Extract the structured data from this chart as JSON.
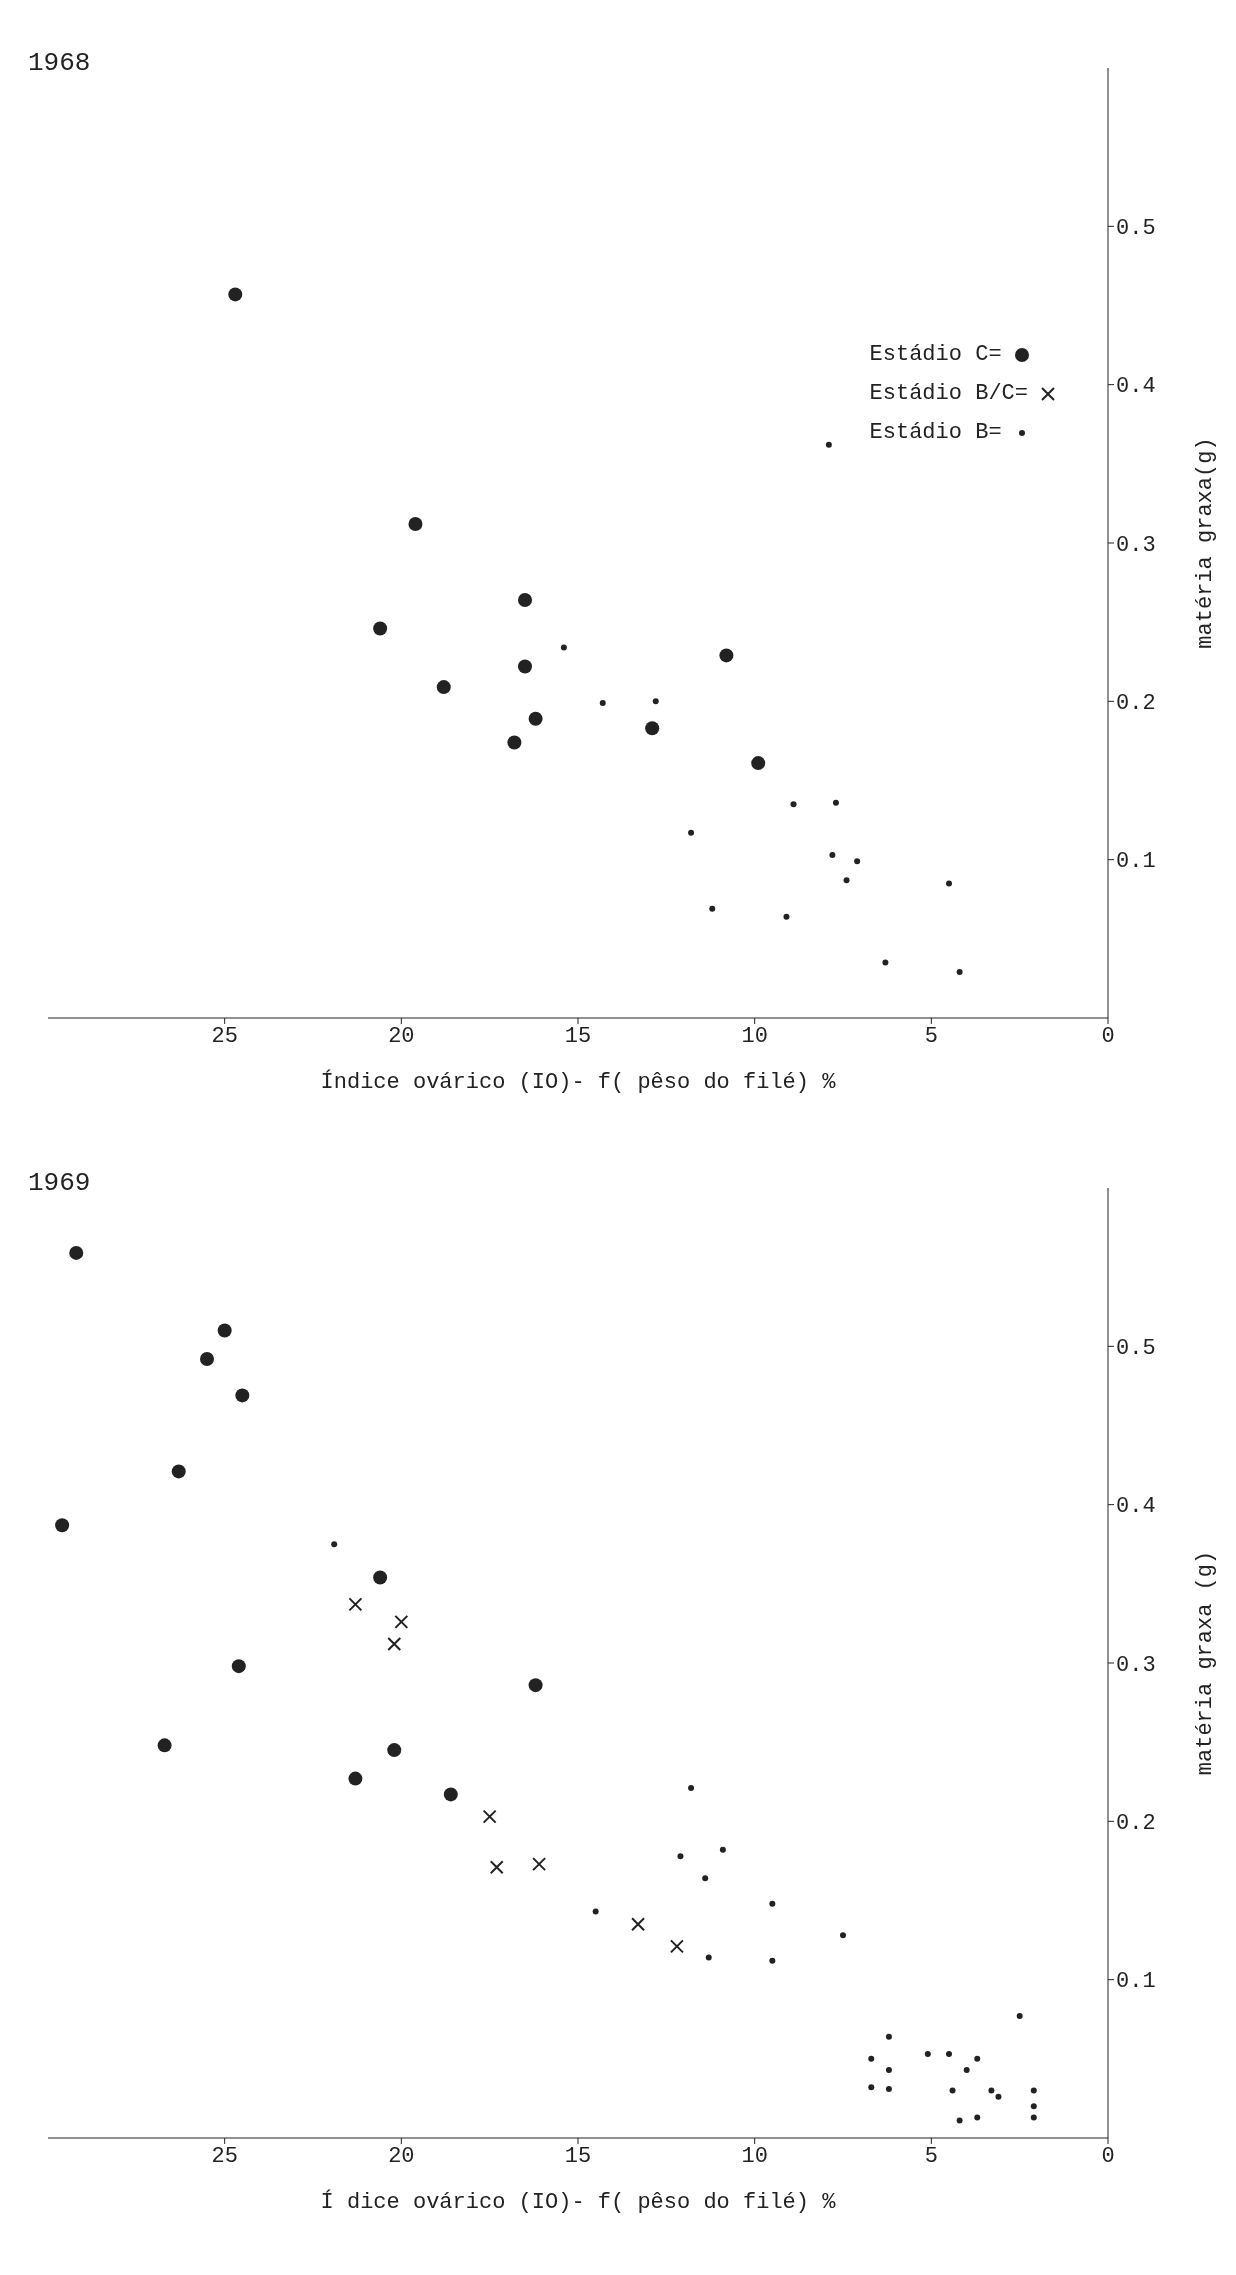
{
  "chart_data": [
    {
      "type": "scatter",
      "title": "1968",
      "ylabel": "matéria graxa(g)",
      "xlabel": "Índice ovárico (IO)- f( pêso do filé) %",
      "ylim": [
        0,
        0.6
      ],
      "yticks": [
        0.1,
        0.2,
        0.3,
        0.4,
        0.5
      ],
      "xlim": [
        30,
        0
      ],
      "xticks": [
        0,
        5,
        10,
        15,
        20,
        25
      ],
      "legend": "right",
      "series": [
        {
          "name": "Estádio C=",
          "color": "#222222",
          "marker": "circle",
          "values": [
            0.457,
            0.312,
            0.264,
            0.246,
            0.209,
            0.222,
            0.189,
            0.174,
            0.183,
            0.229,
            0.161
          ],
          "x": [
            24.7,
            19.6,
            16.5,
            20.6,
            18.8,
            16.5,
            16.2,
            16.8,
            12.9,
            10.8,
            9.9
          ]
        },
        {
          "name": "Estádio B/C=",
          "color": "#222222",
          "marker": "cross"
        },
        {
          "name": "Estádio B=",
          "color": "#222222",
          "marker": "circle",
          "values": [
            0.362,
            0.234,
            0.199,
            0.2,
            0.135,
            0.136,
            0.117,
            0.103,
            0.099,
            0.087,
            0.085,
            0.069,
            0.064,
            0.035,
            0.029
          ],
          "x": [
            7.9,
            15.4,
            14.3,
            12.8,
            8.9,
            7.7,
            11.8,
            7.8,
            7.1,
            7.4,
            4.5,
            11.2,
            9.1,
            6.3,
            4.2
          ]
        }
      ]
    },
    {
      "type": "scatter",
      "title": "1969",
      "ylabel": "matéria graxa (g)",
      "xlabel": "Í dice ovárico (IO)- f( pêso do filé) %",
      "ylim": [
        0,
        0.6
      ],
      "yticks": [
        0.1,
        0.2,
        0.3,
        0.4,
        0.5
      ],
      "xlim": [
        30,
        0
      ],
      "xticks": [
        0,
        5,
        10,
        15,
        20,
        25
      ],
      "series": [
        {
          "color": "#222222",
          "marker": "circle",
          "values": [
            0.286,
            0.248,
            0.245,
            0.227,
            0.217,
            0.559,
            0.51,
            0.492,
            0.469,
            0.421,
            0.387,
            0.354,
            0.298
          ],
          "x": [
            16.2,
            26.7,
            20.2,
            21.3,
            18.6,
            29.2,
            25.0,
            25.5,
            24.5,
            26.3,
            29.6,
            20.6,
            24.6
          ]
        },
        {
          "color": "#222222",
          "marker": "cross",
          "values": [
            0.203,
            0.171,
            0.173,
            0.135,
            0.121,
            0.337,
            0.326,
            0.312
          ],
          "x": [
            17.5,
            17.3,
            16.1,
            13.3,
            12.2,
            21.3,
            20.0,
            20.2
          ]
        },
        {
          "color": "#222222",
          "marker": "circle",
          "values": [
            0.143,
            0.221,
            0.182,
            0.178,
            0.164,
            0.148,
            0.128,
            0.114,
            0.112,
            0.375,
            0.077,
            0.064,
            0.05,
            0.053,
            0.053,
            0.043,
            0.05,
            0.043,
            0.032,
            0.031,
            0.03,
            0.03,
            0.026,
            0.03,
            0.02,
            0.013,
            0.013,
            0.011
          ],
          "x": [
            14.5,
            11.8,
            10.9,
            12.1,
            11.4,
            9.5,
            7.5,
            11.3,
            9.5,
            21.9,
            2.5,
            6.2,
            6.7,
            5.1,
            4.5,
            6.2,
            3.7,
            4.0,
            6.7,
            6.2,
            4.4,
            3.3,
            3.1,
            2.1,
            2.1,
            2.1,
            3.7,
            4.2
          ]
        }
      ]
    }
  ]
}
